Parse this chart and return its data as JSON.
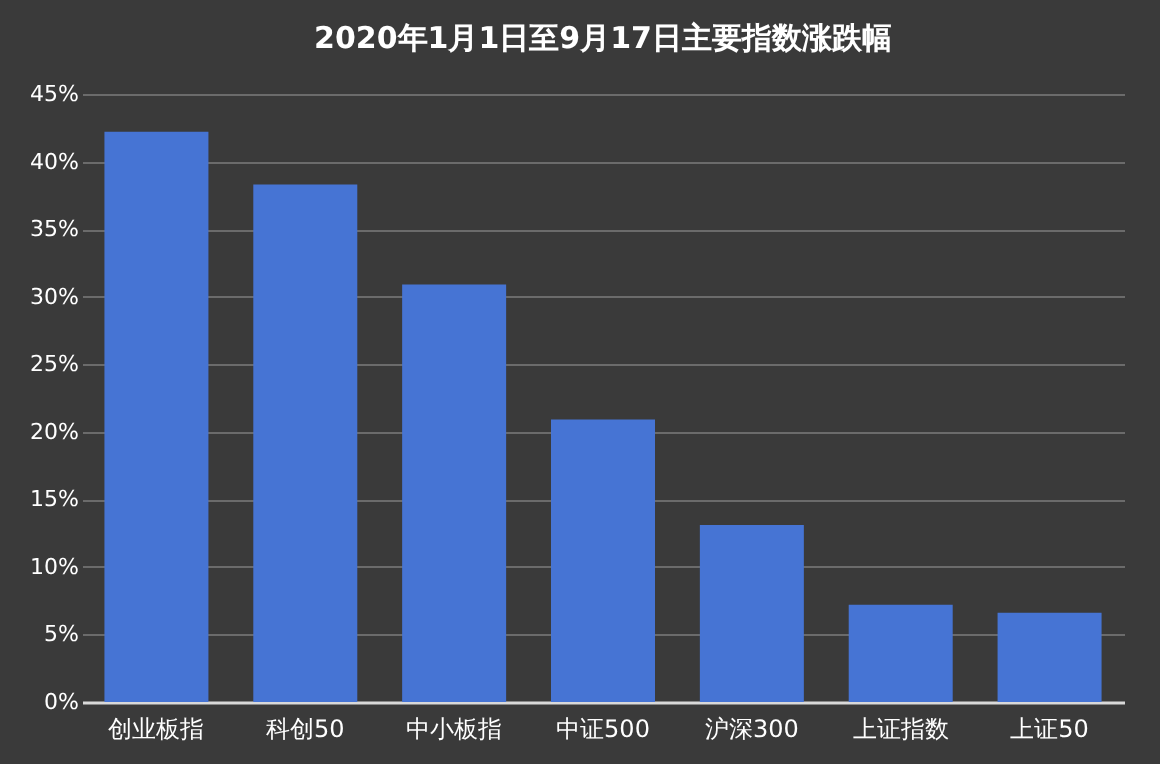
{
  "chart_data": {
    "type": "bar",
    "title": "2020年1月1日至9月17日主要指数涨跌幅",
    "categories": [
      "创业板指",
      "科创50",
      "中小板指",
      "中证500",
      "沪深300",
      "上证指数",
      "上证50"
    ],
    "values": [
      42.2,
      38.3,
      30.9,
      20.9,
      13.1,
      7.2,
      6.6
    ],
    "color": "#4674d4",
    "ylim": [
      0,
      45
    ],
    "yticks": [
      {
        "value": 0,
        "label": "0%"
      },
      {
        "value": 5,
        "label": "5%"
      },
      {
        "value": 10,
        "label": "10%"
      },
      {
        "value": 15,
        "label": "15%"
      },
      {
        "value": 20,
        "label": "20%"
      },
      {
        "value": 25,
        "label": "25%"
      },
      {
        "value": 30,
        "label": "30%"
      },
      {
        "value": 35,
        "label": "35%"
      },
      {
        "value": 40,
        "label": "40%"
      },
      {
        "value": 45,
        "label": "45%"
      }
    ],
    "grid": "y"
  }
}
